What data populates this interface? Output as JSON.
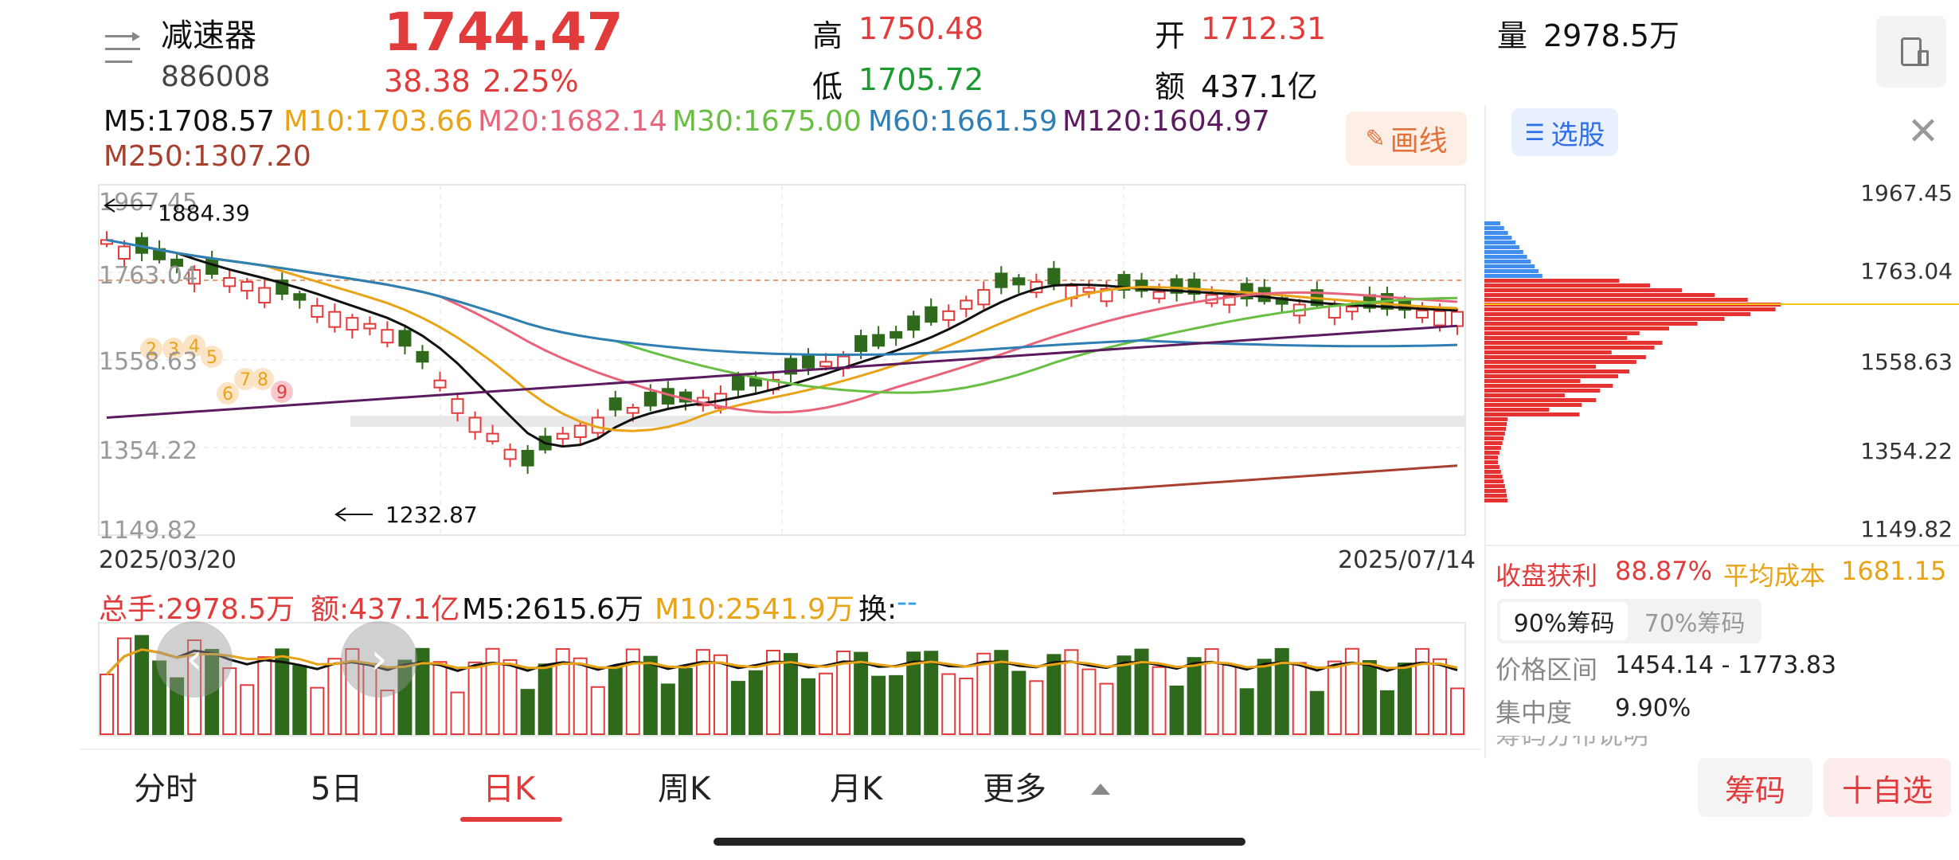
{
  "header": {
    "stock_name": "减速器",
    "stock_code": "886008",
    "price": "1744.47",
    "change": "38.38",
    "change_pct": "2.25%",
    "high_label": "高",
    "high_value": "1750.48",
    "low_label": "低",
    "low_value": "1705.72",
    "open_label": "开",
    "open_value": "1712.31",
    "amount_label": "额",
    "amount_value": "437.1亿",
    "volume_label": "量",
    "volume_value": "2978.5万"
  },
  "ma_legend": {
    "m5": "M5:1708.57",
    "m10": "M10:1703.66",
    "m20": "M20:1682.14",
    "m30": "M30:1675.00",
    "m60": "M60:1661.59",
    "m120": "M120:1604.97",
    "m250": "M250:1307.20"
  },
  "draw_button": "画线",
  "chart_data": {
    "type": "candlestick",
    "x_start": "2025/03/20",
    "x_end": "2025/07/14",
    "y_ticks": [
      "1967.45",
      "1763.04",
      "1558.63",
      "1354.22",
      "1149.82"
    ],
    "ylim": [
      1149.82,
      1967.45
    ],
    "annotations": [
      {
        "label": "1884.39",
        "value": 1884.39
      },
      {
        "label": "1232.87",
        "value": 1232.87
      }
    ],
    "markers": [
      "2",
      "3",
      "4",
      "5",
      "6",
      "7",
      "8",
      "9"
    ],
    "colors": {
      "up": "#e23b3b",
      "down": "#2f6a1c",
      "m5": "#111111",
      "m10": "#e8a317",
      "m20": "#e8647a",
      "m30": "#69bf43",
      "m60": "#2f7fb5",
      "m120": "#5b1b5e",
      "m250": "#a8402f"
    }
  },
  "volume_panel": {
    "total": "总手:2978.5万",
    "amount": "额:437.1亿",
    "m5": "M5:2615.6万",
    "m10": "M10:2541.9万",
    "turnover": "换:",
    "turnover_value": "--"
  },
  "right_panel": {
    "select_label": "选股",
    "price_ticks": [
      "1967.45",
      "1763.04",
      "1558.63",
      "1354.22",
      "1149.82"
    ],
    "profit_label": "收盘获利",
    "profit_value": "88.87%",
    "avg_cost_label": "平均成本",
    "avg_cost_value": "1681.15",
    "tab_90": "90%筹码",
    "tab_70": "70%筹码",
    "range_label": "价格区间",
    "range_value": "1454.14 - 1773.83",
    "concentration_label": "集中度",
    "concentration_value": "9.90%",
    "explain_label": "筹码分布说明"
  },
  "tabs": [
    "分时",
    "5日",
    "日K",
    "周K",
    "月K",
    "更多"
  ],
  "bottom_buttons": {
    "chips": "筹码",
    "add": "十自选"
  }
}
